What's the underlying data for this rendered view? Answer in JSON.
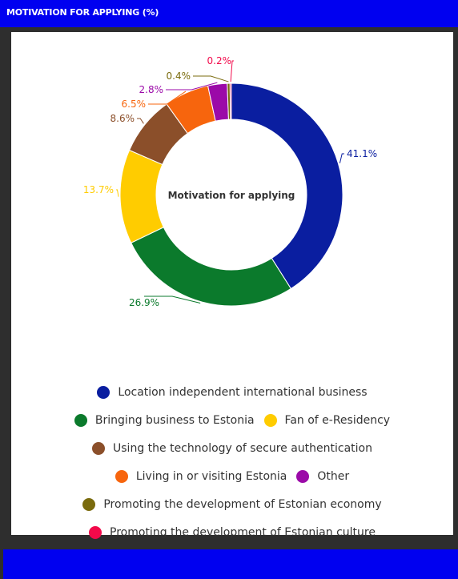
{
  "header": {
    "title": "MOTIVATION FOR APPLYING (%)"
  },
  "colors": {
    "header": "#0000f0",
    "background": "#2e2e2e"
  },
  "chart_data": {
    "type": "pie",
    "style": "donut",
    "center_label": "Motivation for applying",
    "slices": [
      {
        "name": "Location independent international business",
        "value": 41.1,
        "label": "41.1%",
        "color": "#0a1ea0"
      },
      {
        "name": "Bringing business to Estonia",
        "value": 26.9,
        "label": "26.9%",
        "color": "#0b7a2c"
      },
      {
        "name": "Fan of e-Residency",
        "value": 13.7,
        "label": "13.7%",
        "color": "#ffcc00"
      },
      {
        "name": "Using the technology of secure authentication",
        "value": 8.6,
        "label": "8.6%",
        "color": "#8b4f2a"
      },
      {
        "name": "Living in or visiting Estonia",
        "value": 6.5,
        "label": "6.5%",
        "color": "#f7650d"
      },
      {
        "name": "Other",
        "value": 2.8,
        "label": "2.8%",
        "color": "#9b0aa8"
      },
      {
        "name": "Promoting the development of Estonian economy",
        "value": 0.4,
        "label": "0.4%",
        "color": "#7a6b0d"
      },
      {
        "name": "Promoting the development of Estonian culture",
        "value": 0.2,
        "label": "0.2%",
        "color": "#f2094a"
      }
    ],
    "legend": {
      "placement": "bottom",
      "rows": [
        [
          0
        ],
        [
          1,
          2
        ],
        [
          3
        ],
        [
          4,
          5
        ],
        [
          6
        ],
        [
          7
        ]
      ]
    }
  }
}
